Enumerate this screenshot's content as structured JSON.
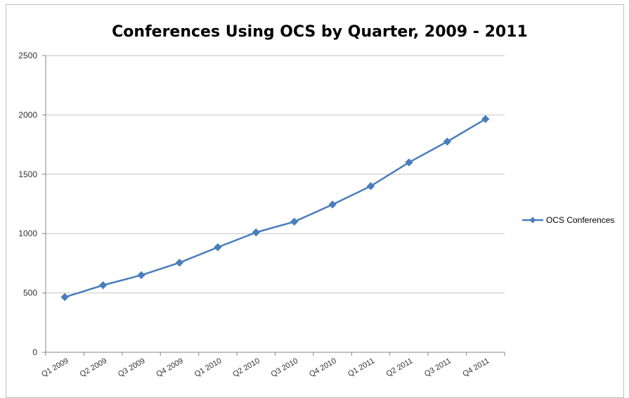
{
  "chart_data": {
    "type": "line",
    "title": "Conferences Using OCS by Quarter, 2009 - 2011",
    "xlabel": "",
    "ylabel": "",
    "categories": [
      "Q1 2009",
      "Q2 2009",
      "Q3 2009",
      "Q4 2009",
      "Q1 2010",
      "Q2 2010",
      "Q3 2010",
      "Q4 2010",
      "Q1 2011",
      "Q2 2011",
      "Q3 2011",
      "Q4 2011"
    ],
    "series": [
      {
        "name": "OCS Conferences",
        "values": [
          465,
          565,
          650,
          755,
          885,
          1010,
          1100,
          1245,
          1400,
          1600,
          1775,
          1965
        ],
        "color": "#4a7ebb",
        "marker": "diamond"
      }
    ],
    "ylim": [
      0,
      2500
    ],
    "yticks": [
      "0",
      "500",
      "1000",
      "1500",
      "2000",
      "2500"
    ],
    "grid": true,
    "legend_position": "right"
  }
}
